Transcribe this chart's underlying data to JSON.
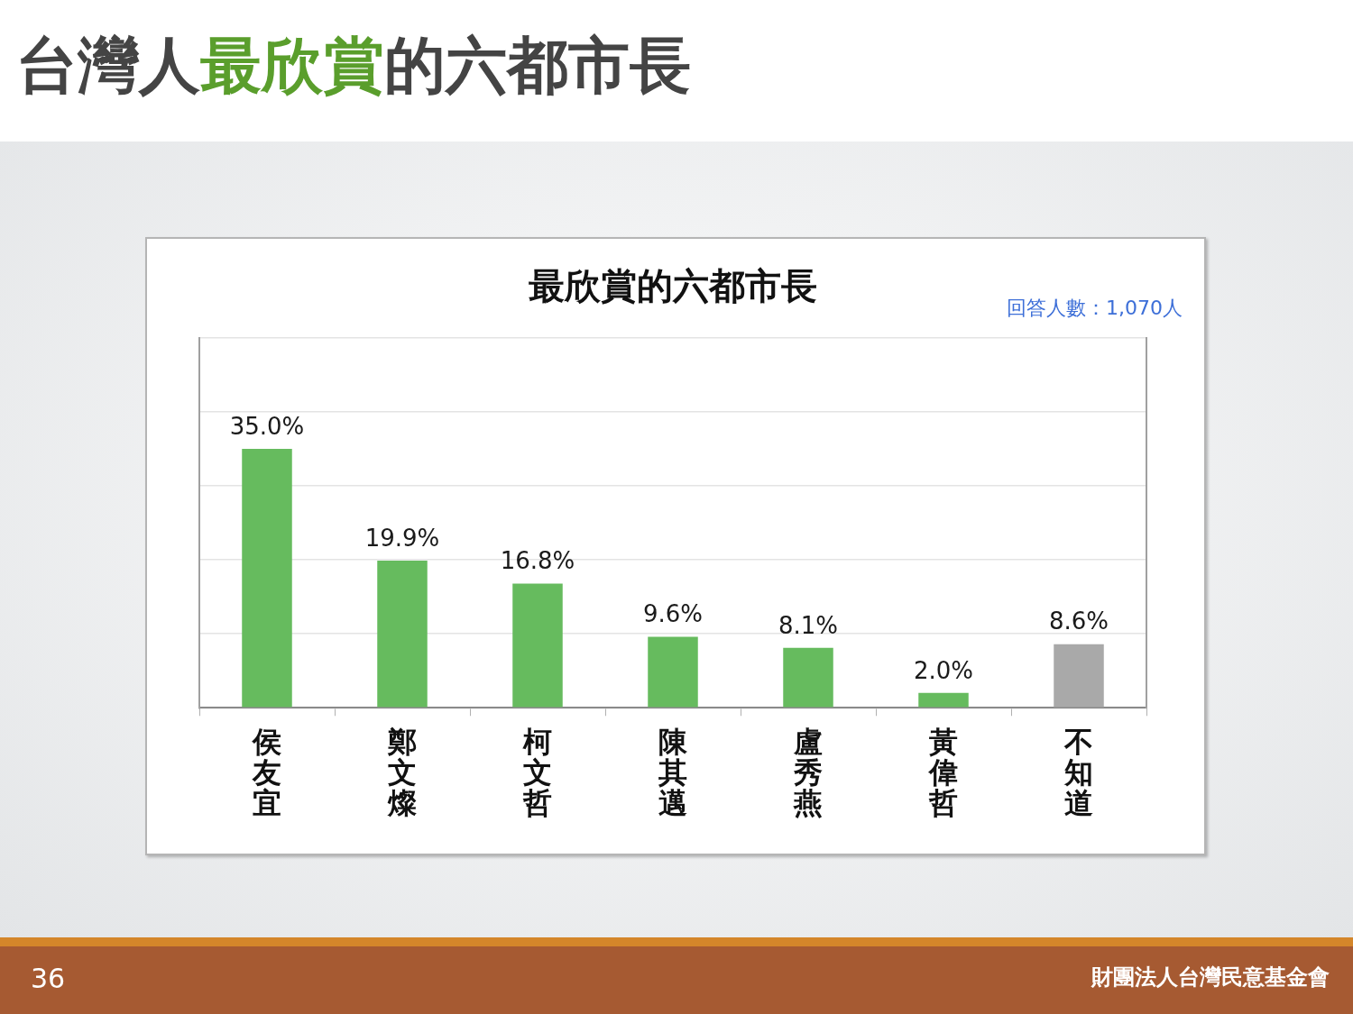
{
  "chart_data": {
    "type": "bar",
    "title": "台灣人最欣賞的六都市長",
    "subtitle": "最欣賞的六都市長",
    "annotations": [
      "回答人數：1,070人",
      "36",
      "財團法人台灣民意基金會"
    ],
    "categories": [
      "侯友宜",
      "鄭文燦",
      "柯文哲",
      "陳其邁",
      "盧秀燕",
      "黃偉哲",
      "不知道"
    ],
    "values": [
      35.0,
      19.9,
      16.8,
      9.6,
      8.1,
      2.0,
      8.6
    ],
    "colors": [
      "#66bb5e",
      "#66bb5e",
      "#66bb5e",
      "#66bb5e",
      "#66bb5e",
      "#66bb5e",
      "#a9a9a9"
    ],
    "value_labels": [
      "35.0%",
      "19.9%",
      "16.8%",
      "9.6%",
      "8.1%",
      "2.0%",
      "8.6%"
    ],
    "ylim": [
      0,
      50
    ],
    "yticks": [
      {
        "value": 0,
        "label": null
      },
      {
        "value": 10,
        "label": null
      },
      {
        "value": 20,
        "label": null
      },
      {
        "value": 30,
        "label": null
      },
      {
        "value": 40,
        "label": null
      },
      {
        "value": 50,
        "label": null
      }
    ],
    "grid": "y",
    "tick_labels": "x",
    "legend": false
  }
}
